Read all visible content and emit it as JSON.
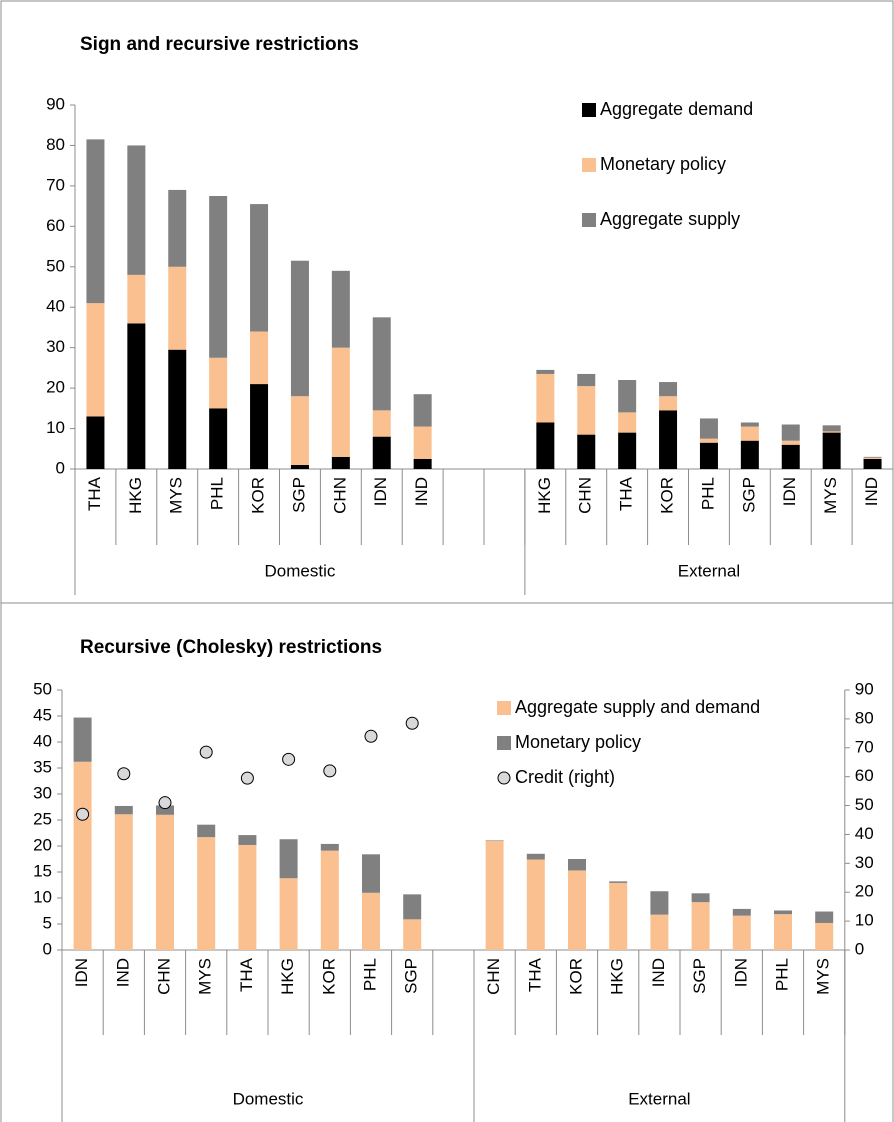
{
  "chart_data": [
    {
      "type": "bar",
      "stacked": true,
      "title": "Sign and recursive restrictions",
      "categories": [
        "THA",
        "HKG",
        "MYS",
        "PHL",
        "KOR",
        "SGP",
        "CHN",
        "IDN",
        "IND",
        null,
        null,
        "HKG",
        "CHN",
        "THA",
        "KOR",
        "PHL",
        "SGP",
        "IDN",
        "MYS",
        "IND"
      ],
      "groups": [
        {
          "label": "Domestic",
          "size": 11
        },
        {
          "label": "External",
          "size": 9
        }
      ],
      "series": [
        {
          "name": "Aggregate demand",
          "color": "#000000",
          "values": [
            13,
            36,
            29.5,
            15,
            21,
            1,
            3,
            8,
            2.5,
            null,
            null,
            11.5,
            8.5,
            9,
            14.5,
            6.5,
            7,
            6,
            9,
            2.5
          ]
        },
        {
          "name": "Monetary policy",
          "color": "#fac090",
          "values": [
            28,
            12,
            20.5,
            12.5,
            13,
            17,
            27,
            6.5,
            8,
            null,
            null,
            12,
            12,
            5,
            3.5,
            1,
            3.5,
            1,
            0.3,
            0.3
          ]
        },
        {
          "name": "Aggregate supply",
          "color": "#808080",
          "values": [
            40.5,
            32,
            19,
            40,
            31.5,
            33.5,
            19,
            23,
            8,
            null,
            null,
            1,
            3,
            8,
            3.5,
            5,
            1,
            4,
            1.5,
            0.2
          ]
        }
      ],
      "ylim": [
        0,
        90
      ],
      "yticks": [
        0,
        10,
        20,
        30,
        40,
        50,
        60,
        70,
        80,
        90
      ],
      "legend": "top-right"
    },
    {
      "type": "bar",
      "stacked": true,
      "title": "Recursive (Cholesky) restrictions",
      "categories": [
        "IDN",
        "IND",
        "CHN",
        "MYS",
        "THA",
        "HKG",
        "KOR",
        "PHL",
        "SGP",
        null,
        "CHN",
        "THA",
        "KOR",
        "HKG",
        "IND",
        "SGP",
        "IDN",
        "PHL",
        "MYS"
      ],
      "groups": [
        {
          "label": "Domestic",
          "size": 10
        },
        {
          "label": "External",
          "size": 9
        }
      ],
      "series": [
        {
          "name": "Aggregate supply and demand",
          "color": "#fac090",
          "values": [
            36.2,
            26.1,
            26,
            21.7,
            20.2,
            13.8,
            19.1,
            11,
            5.9,
            null,
            21,
            17.4,
            15.3,
            12.9,
            6.8,
            9.2,
            6.6,
            6.9,
            5.2
          ]
        },
        {
          "name": "Monetary policy",
          "color": "#808080",
          "values": [
            8.5,
            1.6,
            1.8,
            2.4,
            1.9,
            7.5,
            1.3,
            7.4,
            4.8,
            null,
            0.1,
            1.1,
            2.2,
            0.3,
            4.5,
            1.7,
            1.3,
            0.7,
            2.2
          ]
        },
        {
          "name": "Credit (right)",
          "type": "scatter",
          "axis": "y2",
          "color": "#d9d9d9",
          "values": [
            47,
            61,
            51,
            68.5,
            59.5,
            66,
            62,
            74,
            78.5,
            null,
            null,
            null,
            null,
            null,
            null,
            null,
            null,
            null,
            null
          ]
        }
      ],
      "ylim": [
        0,
        50
      ],
      "yticks": [
        0,
        5,
        10,
        15,
        20,
        25,
        30,
        35,
        40,
        45,
        50
      ],
      "y2lim": [
        0,
        90
      ],
      "y2ticks": [
        0,
        10,
        20,
        30,
        40,
        50,
        60,
        70,
        80,
        90
      ],
      "legend": "top-right"
    }
  ]
}
